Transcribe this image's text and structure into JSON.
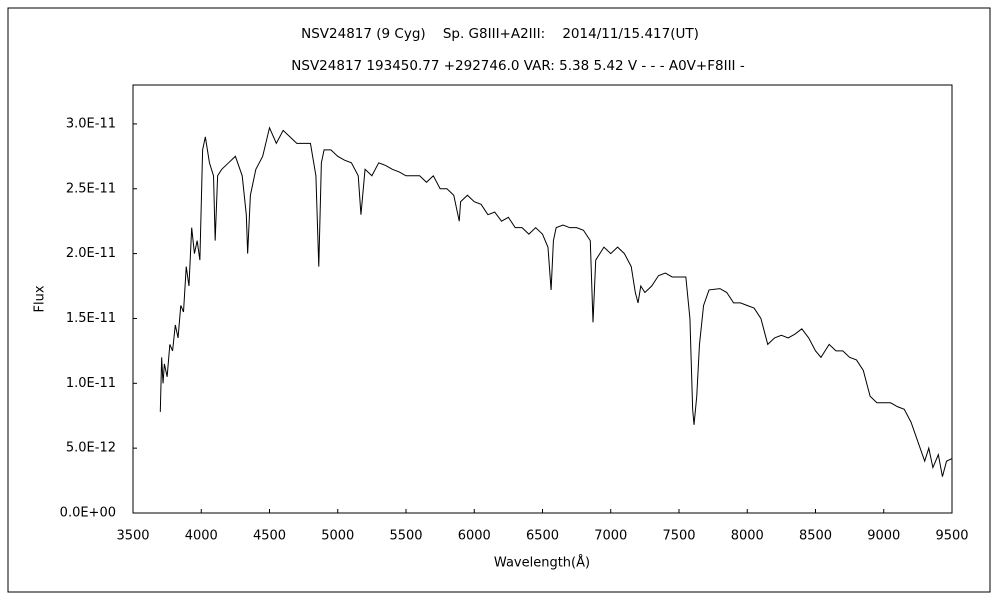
{
  "chart_data": {
    "type": "line",
    "title": "NSV24817 (9 Cyg)    Sp. G8III+A2III:    2014/11/15.417(UT)",
    "subtitle": "NSV24817 193450.77 +292746.0 VAR: 5.38 5.42 V - - - A0V+F8III -",
    "x_label": "Wavelength(Å)",
    "y_label": "Flux",
    "xlim": [
      3500,
      9500
    ],
    "ylim": [
      0,
      3.3e-11
    ],
    "xticks": [
      3500,
      4000,
      4500,
      5000,
      5500,
      6000,
      6500,
      7000,
      7500,
      8000,
      8500,
      9000,
      9500
    ],
    "yticks": [
      {
        "value": 0,
        "label": "0.0E+00"
      },
      {
        "value": 5e-12,
        "label": "5.0E-12"
      },
      {
        "value": 1e-11,
        "label": "1.0E-11"
      },
      {
        "value": 1.5e-11,
        "label": "1.5E-11"
      },
      {
        "value": 2e-11,
        "label": "2.0E-11"
      },
      {
        "value": 2.5e-11,
        "label": "2.5E-11"
      },
      {
        "value": 3e-11,
        "label": "3.0E-11"
      }
    ],
    "color": "#000000",
    "grid": false,
    "x": [
      3700,
      3710,
      3720,
      3730,
      3750,
      3770,
      3790,
      3810,
      3830,
      3850,
      3870,
      3890,
      3910,
      3930,
      3950,
      3970,
      3990,
      4010,
      4030,
      4060,
      4090,
      4102,
      4120,
      4150,
      4200,
      4250,
      4300,
      4330,
      4340,
      4360,
      4400,
      4450,
      4500,
      4550,
      4600,
      4650,
      4700,
      4750,
      4800,
      4840,
      4861,
      4880,
      4900,
      4950,
      5000,
      5050,
      5100,
      5150,
      5170,
      5200,
      5250,
      5300,
      5350,
      5400,
      5450,
      5500,
      5550,
      5600,
      5650,
      5700,
      5750,
      5800,
      5850,
      5890,
      5900,
      5950,
      6000,
      6050,
      6100,
      6150,
      6200,
      6250,
      6300,
      6350,
      6400,
      6450,
      6500,
      6540,
      6563,
      6580,
      6600,
      6650,
      6700,
      6750,
      6800,
      6850,
      6870,
      6890,
      6920,
      6950,
      7000,
      7050,
      7100,
      7150,
      7180,
      7200,
      7220,
      7250,
      7300,
      7350,
      7400,
      7450,
      7500,
      7550,
      7580,
      7600,
      7610,
      7630,
      7650,
      7680,
      7720,
      7800,
      7850,
      7900,
      7950,
      8000,
      8050,
      8100,
      8150,
      8200,
      8250,
      8300,
      8350,
      8400,
      8450,
      8500,
      8540,
      8600,
      8650,
      8700,
      8750,
      8800,
      8850,
      8900,
      8950,
      9000,
      9050,
      9100,
      9150,
      9200,
      9250,
      9300,
      9330,
      9360,
      9400,
      9430,
      9460,
      9500
    ],
    "values": [
      7.8e-12,
      1.2e-11,
      1e-11,
      1.15e-11,
      1.05e-11,
      1.3e-11,
      1.25e-11,
      1.45e-11,
      1.35e-11,
      1.6e-11,
      1.55e-11,
      1.9e-11,
      1.75e-11,
      2.2e-11,
      2e-11,
      2.1e-11,
      1.95e-11,
      2.8e-11,
      2.9e-11,
      2.7e-11,
      2.6e-11,
      2.1e-11,
      2.6e-11,
      2.65e-11,
      2.7e-11,
      2.75e-11,
      2.6e-11,
      2.3e-11,
      2e-11,
      2.45e-11,
      2.65e-11,
      2.75e-11,
      2.97e-11,
      2.85e-11,
      2.95e-11,
      2.9e-11,
      2.85e-11,
      2.85e-11,
      2.85e-11,
      2.6e-11,
      1.9e-11,
      2.7e-11,
      2.8e-11,
      2.8e-11,
      2.75e-11,
      2.72e-11,
      2.7e-11,
      2.6e-11,
      2.3e-11,
      2.65e-11,
      2.6e-11,
      2.7e-11,
      2.68e-11,
      2.65e-11,
      2.63e-11,
      2.6e-11,
      2.6e-11,
      2.6e-11,
      2.55e-11,
      2.6e-11,
      2.5e-11,
      2.5e-11,
      2.45e-11,
      2.25e-11,
      2.4e-11,
      2.45e-11,
      2.4e-11,
      2.38e-11,
      2.3e-11,
      2.32e-11,
      2.25e-11,
      2.28e-11,
      2.2e-11,
      2.2e-11,
      2.15e-11,
      2.2e-11,
      2.15e-11,
      2.05e-11,
      1.72e-11,
      2.1e-11,
      2.2e-11,
      2.22e-11,
      2.2e-11,
      2.2e-11,
      2.18e-11,
      2.1e-11,
      1.47e-11,
      1.95e-11,
      2e-11,
      2.05e-11,
      2e-11,
      2.05e-11,
      2e-11,
      1.9e-11,
      1.7e-11,
      1.62e-11,
      1.75e-11,
      1.7e-11,
      1.75e-11,
      1.83e-11,
      1.85e-11,
      1.82e-11,
      1.82e-11,
      1.82e-11,
      1.5e-11,
      8e-12,
      6.8e-12,
      9e-12,
      1.3e-11,
      1.6e-11,
      1.72e-11,
      1.73e-11,
      1.7e-11,
      1.62e-11,
      1.62e-11,
      1.6e-11,
      1.58e-11,
      1.5e-11,
      1.3e-11,
      1.35e-11,
      1.37e-11,
      1.35e-11,
      1.38e-11,
      1.42e-11,
      1.35e-11,
      1.25e-11,
      1.2e-11,
      1.3e-11,
      1.25e-11,
      1.25e-11,
      1.2e-11,
      1.18e-11,
      1.1e-11,
      9e-12,
      8.5e-12,
      8.5e-12,
      8.5e-12,
      8.2e-12,
      8e-12,
      7e-12,
      5.5e-12,
      4e-12,
      5e-12,
      3.5e-12,
      4.5e-12,
      2.8e-12,
      4e-12,
      4.2e-12
    ]
  }
}
